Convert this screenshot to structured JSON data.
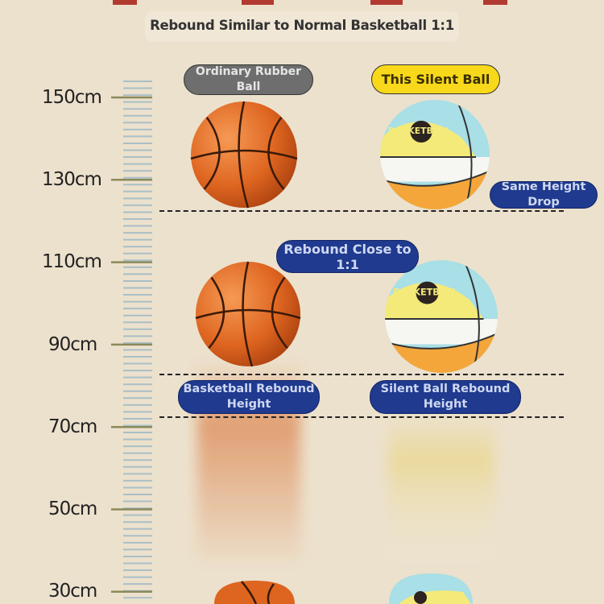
{
  "title": "Rebound Similar to Normal Basketball 1:1",
  "scale": {
    "labels": [
      "150cm",
      "130cm",
      "110cm",
      "90cm",
      "70cm",
      "50cm",
      "30cm"
    ]
  },
  "labels": {
    "ordinary": "Ordinary Rubber Ball",
    "silent": "This Silent Ball",
    "same_height": "Same Height Drop",
    "rebound_close": "Rebound Close to 1:1",
    "basketball_rebound": "Basketball Rebound Height",
    "silent_rebound": "Silent Ball Rebound Height"
  },
  "ball_logo": "BASKETBALL",
  "colors": {
    "background": "#ece1cd",
    "label_blue": "#1f3a8e",
    "label_yellow": "#f8d81a",
    "label_gray": "#6e6e6e",
    "basketball": "#e06a1e"
  }
}
